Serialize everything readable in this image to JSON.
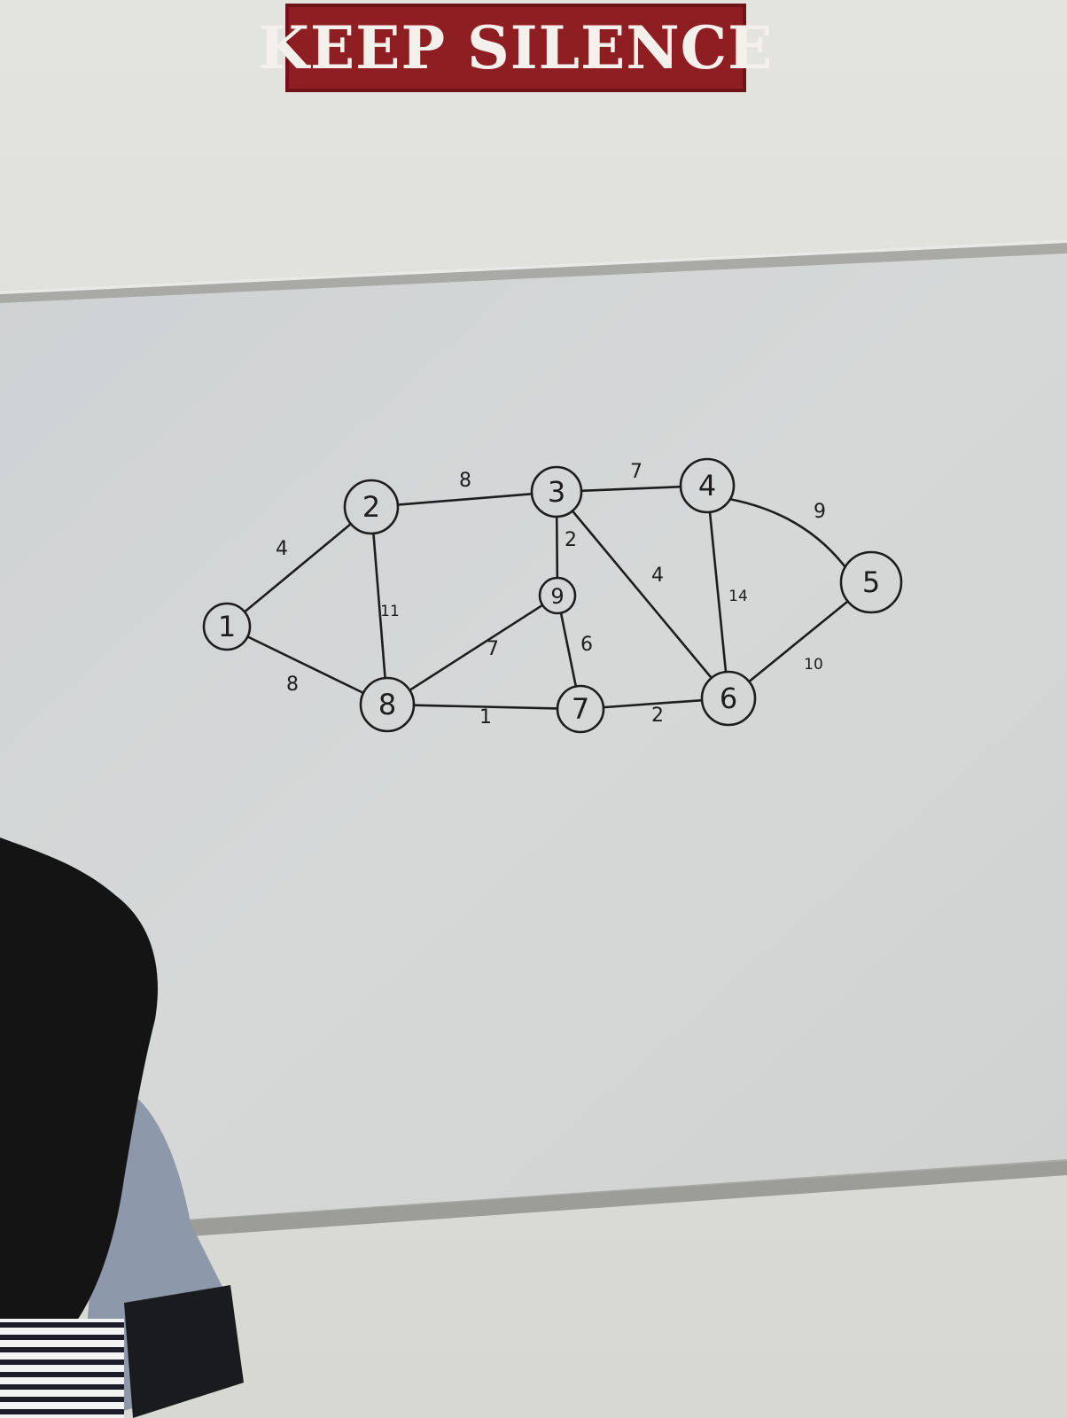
{
  "sign": {
    "text": "KEEP SILENCE"
  },
  "graph": {
    "nodes": [
      {
        "id": "1",
        "label": "1"
      },
      {
        "id": "2",
        "label": "2"
      },
      {
        "id": "3",
        "label": "3"
      },
      {
        "id": "4",
        "label": "4"
      },
      {
        "id": "5",
        "label": "5"
      },
      {
        "id": "6",
        "label": "6"
      },
      {
        "id": "7",
        "label": "7"
      },
      {
        "id": "8",
        "label": "8"
      },
      {
        "id": "9",
        "label": "9"
      }
    ],
    "edges": [
      {
        "from": "1",
        "to": "2",
        "weight": "4"
      },
      {
        "from": "1",
        "to": "8",
        "weight": "8"
      },
      {
        "from": "2",
        "to": "3",
        "weight": "8"
      },
      {
        "from": "2",
        "to": "8",
        "weight": "11"
      },
      {
        "from": "3",
        "to": "4",
        "weight": "7"
      },
      {
        "from": "3",
        "to": "9",
        "weight": "2"
      },
      {
        "from": "3",
        "to": "6",
        "weight": "4"
      },
      {
        "from": "4",
        "to": "5",
        "weight": "9"
      },
      {
        "from": "4",
        "to": "6",
        "weight": "14"
      },
      {
        "from": "5",
        "to": "6",
        "weight": "10"
      },
      {
        "from": "9",
        "to": "8",
        "weight": "7"
      },
      {
        "from": "9",
        "to": "7",
        "weight": "6"
      },
      {
        "from": "8",
        "to": "7",
        "weight": "1"
      },
      {
        "from": "7",
        "to": "6",
        "weight": "2"
      }
    ]
  },
  "colors": {
    "sign_background": "#8e1e22",
    "sign_text": "#f4f1ec",
    "board": "#d3d5d6",
    "ink": "#1d1d1d"
  }
}
